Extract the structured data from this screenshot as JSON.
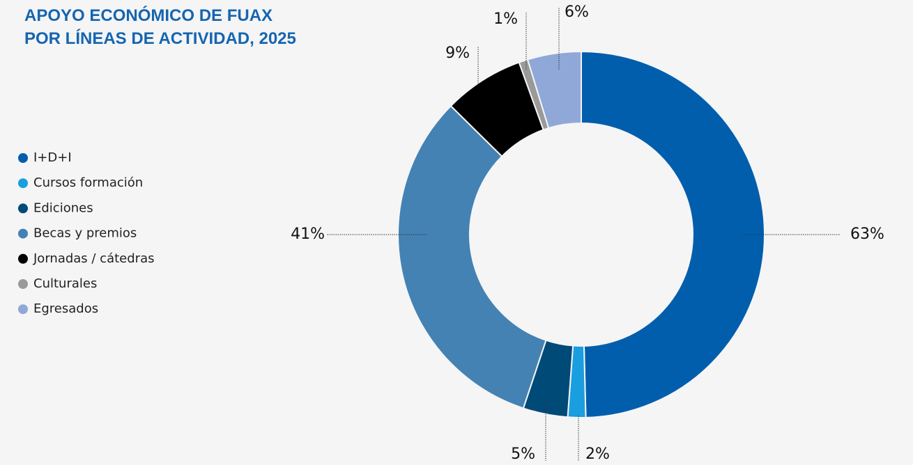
{
  "chart_data": {
    "type": "donut",
    "title": [
      "APOYO ECONÓMICO DE FUAX",
      "POR LÍNEAS DE ACTIVIDAD, 2025"
    ],
    "categories": [
      "I+D+I",
      "Cursos formación",
      "Ediciones",
      "Becas y premios",
      "Jornadas / cátedras",
      "Culturales",
      "Egresados"
    ],
    "values": [
      63,
      2,
      5,
      41,
      9,
      1,
      6
    ],
    "value_labels": [
      "63%",
      "2%",
      "5%",
      "41%",
      "9%",
      "1%",
      "6%"
    ],
    "colors": [
      "#005ead",
      "#1a9ee0",
      "#004a78",
      "#4482b4",
      "#000000",
      "#9a9a9a",
      "#8fa8d8"
    ],
    "legend": "left"
  }
}
